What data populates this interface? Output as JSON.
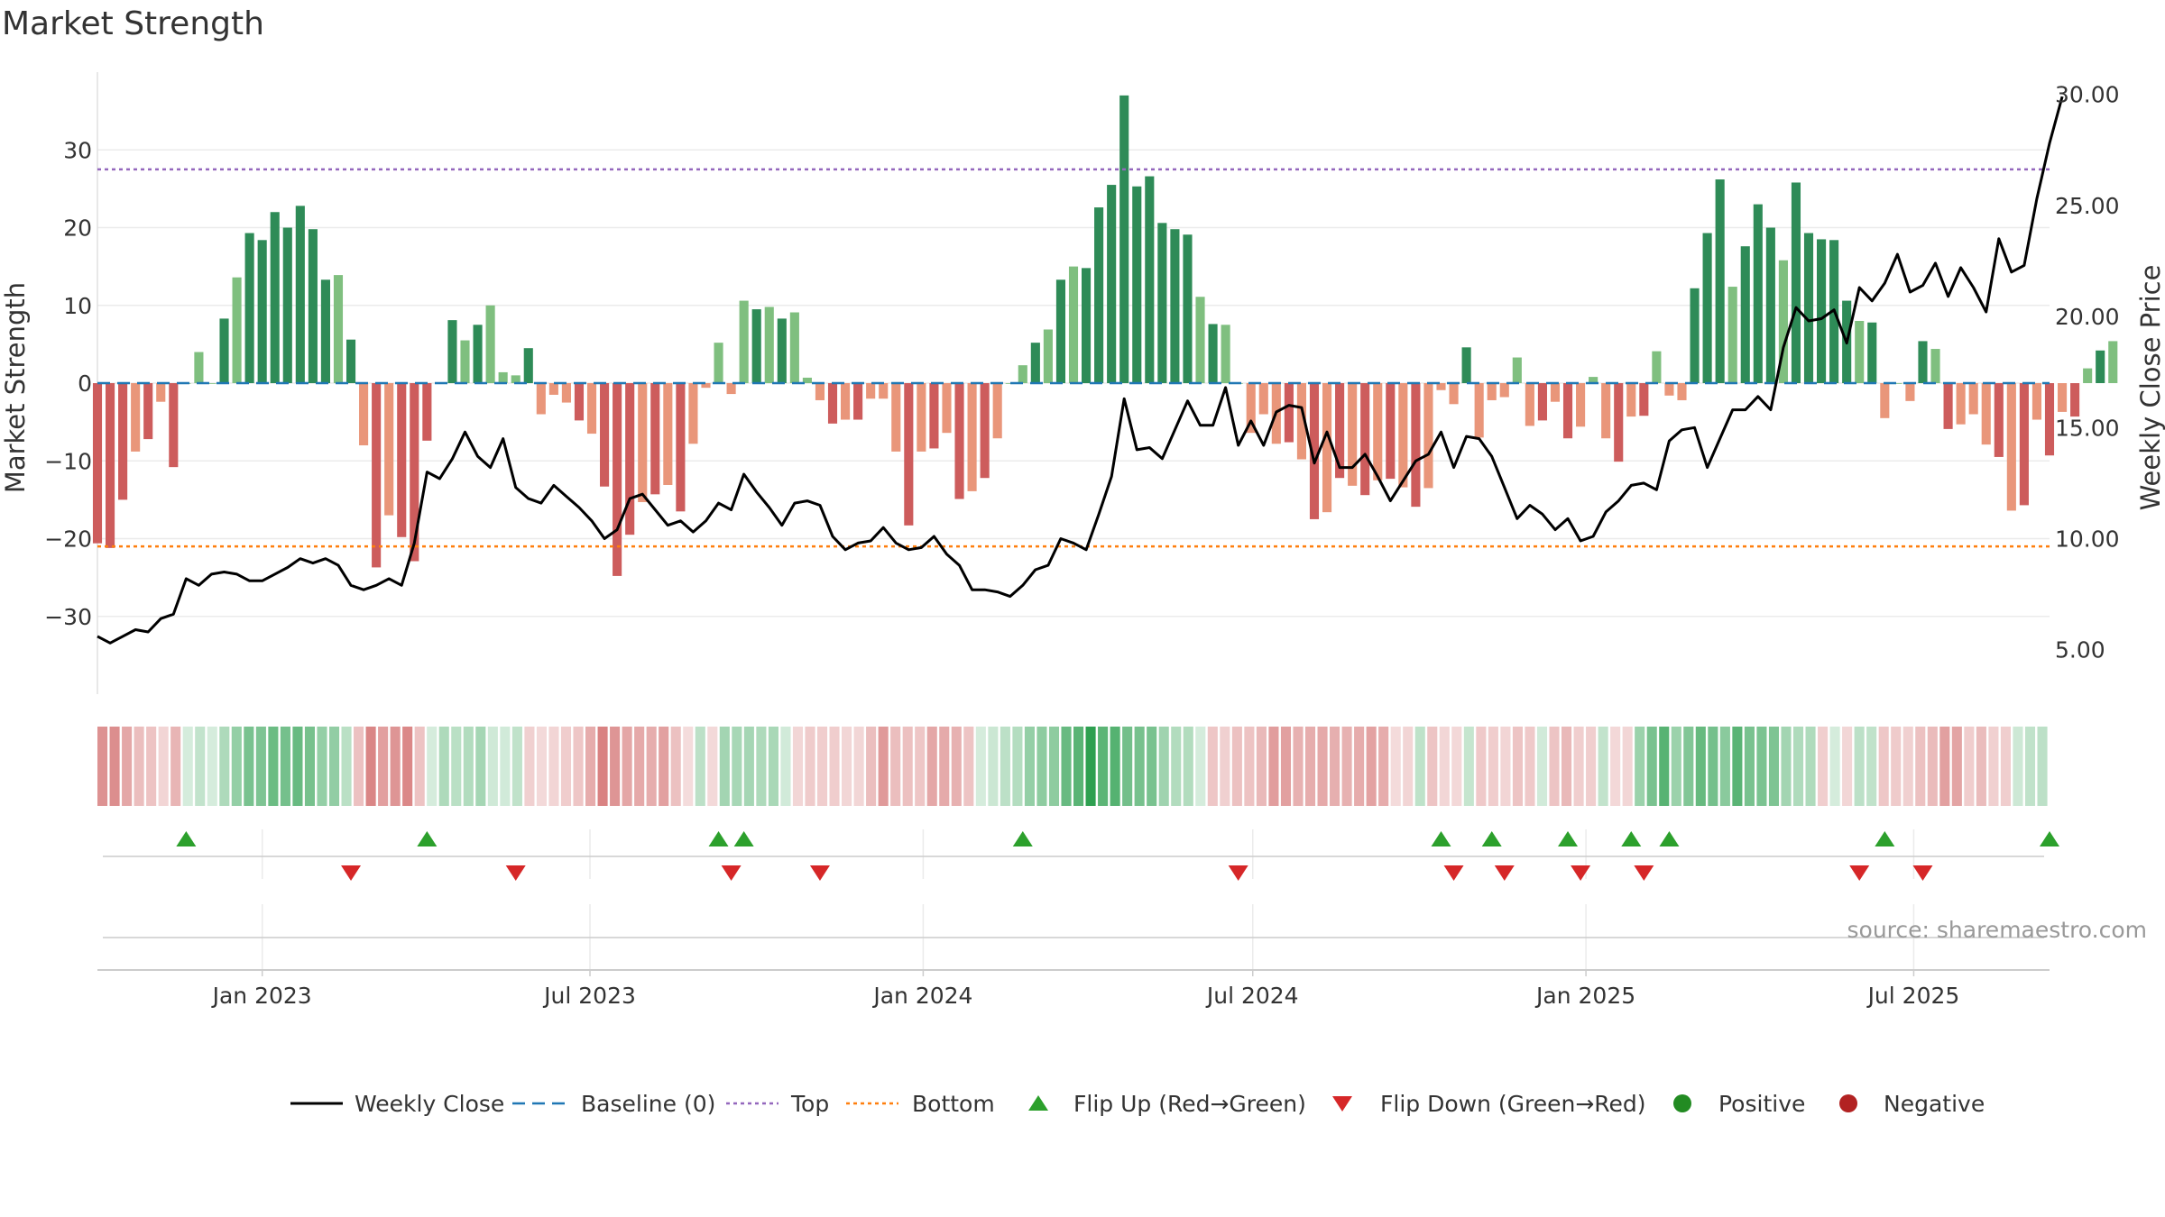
{
  "title": "Market Strength",
  "source": "source: sharemaestro.com",
  "colors": {
    "strong_green": "#2e8b57",
    "light_green": "#7fbf7f",
    "strong_red": "#cd5c5c",
    "light_red": "#e9967a",
    "price_line": "#000000",
    "baseline": "#1f77b4",
    "top_line": "#9467bd",
    "bottom_line": "#ff7f0e",
    "flip_up": "#2ca02c",
    "flip_down": "#d62728",
    "positive": "#228b22",
    "negative": "#b22222",
    "grid": "#ebebeb",
    "text": "#333333"
  },
  "chart_data": {
    "type": "bar",
    "title": "Market Strength",
    "ylabel_left": "Market Strength",
    "ylabel_right": "Weekly Close Price",
    "ylim_left": [
      -40,
      40
    ],
    "ylim_right": [
      3,
      31
    ],
    "yticks_left": [
      30,
      20,
      10,
      0,
      -10,
      -20,
      -30
    ],
    "ytick_labels_left": [
      "30",
      "20",
      "10",
      "0",
      "−10",
      "−20",
      "−30"
    ],
    "yticks_right": [
      30,
      25,
      20,
      15,
      10,
      5
    ],
    "ytick_labels_right": [
      "30.00",
      "25.00",
      "20.00",
      "15.00",
      "10.00",
      "5.00"
    ],
    "x_start": "2022-10-02",
    "x_end": "2025-09-14",
    "xticks": [
      {
        "date": "2023-01-01",
        "label": "Jan 2023"
      },
      {
        "date": "2023-07-01",
        "label": "Jul 2023"
      },
      {
        "date": "2024-01-01",
        "label": "Jan 2024"
      },
      {
        "date": "2024-07-01",
        "label": "Jul 2024"
      },
      {
        "date": "2025-01-01",
        "label": "Jan 2025"
      },
      {
        "date": "2025-07-01",
        "label": "Jul 2025"
      }
    ],
    "top_threshold": 27.5,
    "bottom_threshold": -21,
    "baseline": 0,
    "strength": [
      -20.6,
      -21.2,
      -15.0,
      -8.8,
      -7.2,
      -2.4,
      -10.8,
      0.0,
      4.0,
      0.0,
      8.3,
      13.6,
      19.3,
      18.4,
      22.0,
      20.0,
      22.8,
      19.8,
      13.3,
      13.9,
      5.6,
      -8.0,
      -23.7,
      -17.0,
      -19.8,
      -22.9,
      -7.4,
      0.0,
      8.1,
      5.5,
      7.5,
      10.0,
      1.4,
      1.0,
      4.5,
      -4.0,
      -1.5,
      -2.5,
      -4.8,
      -6.5,
      -13.3,
      -24.8,
      -19.5,
      -15.3,
      -14.3,
      -13.1,
      -16.5,
      -7.8,
      -0.6,
      5.2,
      -1.4,
      10.6,
      9.5,
      9.8,
      8.3,
      9.1,
      0.7,
      -2.2,
      -5.2,
      -4.7,
      -4.7,
      -2.0,
      -2.0,
      -8.8,
      -18.3,
      -8.8,
      -8.4,
      -6.4,
      -14.9,
      -13.9,
      -12.2,
      -7.1,
      0.0,
      2.3,
      5.2,
      6.9,
      13.3,
      15.0,
      14.8,
      22.6,
      25.5,
      37.0,
      25.3,
      26.6,
      20.6,
      19.8,
      19.1,
      11.1,
      7.6,
      7.5,
      0.0,
      -6.4,
      -4.0,
      -7.8,
      -7.6,
      -9.8,
      -17.5,
      -16.6,
      -12.2,
      -13.2,
      -14.4,
      -12.5,
      -12.3,
      -13.4,
      -15.9,
      -13.5,
      -0.9,
      -2.7,
      4.6,
      -7.0,
      -2.2,
      -1.8,
      3.3,
      -5.5,
      -4.8,
      -2.4,
      -7.1,
      -5.6,
      0.8,
      -7.1,
      -10.1,
      -4.3,
      -4.2,
      4.1,
      -1.6,
      -2.2,
      12.2,
      19.3,
      26.2,
      12.4,
      17.6,
      23.0,
      20.0,
      15.8,
      25.8,
      19.3,
      18.5,
      18.4,
      10.6,
      8.0,
      7.8,
      -4.5,
      0.0,
      -2.3,
      5.4,
      4.4,
      -5.9,
      -5.3,
      -4.0,
      -7.9,
      -9.5,
      -16.4,
      -15.7,
      -4.7,
      -9.3,
      -3.7,
      -4.3,
      1.9,
      4.2,
      5.4
    ],
    "weekly_close": [
      5.6,
      5.3,
      5.6,
      5.9,
      5.8,
      6.4,
      6.6,
      8.2,
      7.9,
      8.4,
      8.5,
      8.4,
      8.1,
      8.1,
      8.4,
      8.7,
      9.1,
      8.9,
      9.1,
      8.8,
      7.9,
      7.7,
      7.9,
      8.2,
      7.9,
      9.8,
      13.0,
      12.7,
      13.6,
      14.8,
      13.7,
      13.2,
      14.5,
      12.3,
      11.8,
      11.6,
      12.4,
      11.9,
      11.4,
      10.8,
      10.0,
      10.4,
      11.8,
      12.0,
      11.3,
      10.6,
      10.8,
      10.3,
      10.8,
      11.6,
      11.3,
      12.9,
      12.1,
      11.4,
      10.6,
      11.6,
      11.7,
      11.5,
      10.1,
      9.5,
      9.8,
      9.9,
      10.5,
      9.8,
      9.5,
      9.6,
      10.1,
      9.3,
      8.8,
      7.7,
      7.7,
      7.6,
      7.4,
      7.9,
      8.6,
      8.8,
      10.0,
      9.8,
      9.5,
      11.1,
      12.8,
      16.3,
      14.0,
      14.1,
      13.6,
      14.9,
      16.2,
      15.1,
      15.1,
      16.8,
      14.2,
      15.3,
      14.2,
      15.7,
      16.0,
      15.9,
      13.4,
      14.8,
      13.2,
      13.2,
      13.8,
      12.8,
      11.7,
      12.6,
      13.5,
      13.8,
      14.8,
      13.2,
      14.6,
      14.5,
      13.7,
      12.3,
      10.9,
      11.5,
      11.1,
      10.4,
      10.9,
      9.9,
      10.1,
      11.2,
      11.7,
      12.4,
      12.5,
      12.2,
      14.4,
      14.9,
      15.0,
      13.2,
      14.5,
      15.8,
      15.8,
      16.4,
      15.8,
      18.6,
      20.4,
      19.8,
      19.9,
      20.3,
      18.8,
      21.3,
      20.7,
      21.5,
      22.8,
      21.1,
      21.4,
      22.4,
      20.9,
      22.2,
      21.3,
      20.2,
      23.5,
      22.0,
      22.3,
      25.3,
      27.8,
      29.9
    ],
    "flip_up_weeks": [
      7,
      26,
      49,
      51,
      73,
      106,
      110,
      116,
      121,
      124,
      141,
      154
    ],
    "flip_down_weeks": [
      20,
      33,
      50,
      57,
      90,
      107,
      111,
      117,
      122,
      139,
      144
    ],
    "legend": [
      "Weekly Close",
      "Baseline (0)",
      "Top",
      "Bottom",
      "Flip Up (Red→Green)",
      "Flip Down (Green→Red)",
      "Positive",
      "Negative"
    ]
  }
}
